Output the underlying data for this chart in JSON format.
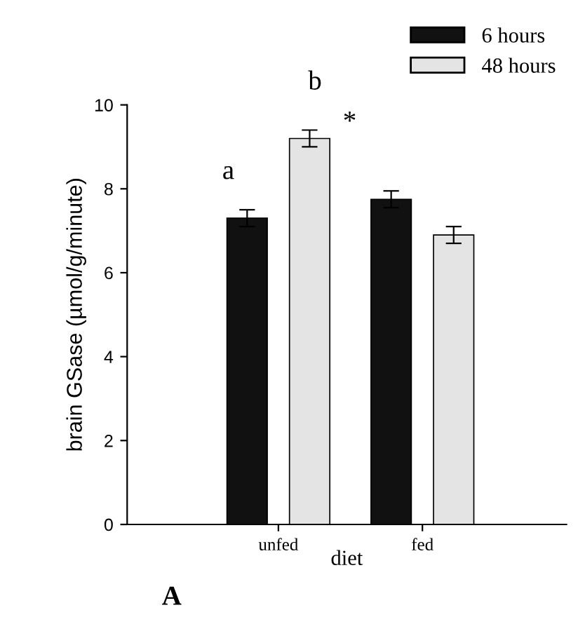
{
  "chart_data": {
    "type": "bar",
    "xlabel": "diet",
    "ylabel": "brain GSase (µmol/g/minute)",
    "categories": [
      "unfed",
      "fed"
    ],
    "series": [
      {
        "name": "6 hours",
        "color": "#111111",
        "values": [
          7.3,
          7.75
        ],
        "errors": [
          0.2,
          0.2
        ]
      },
      {
        "name": "48 hours",
        "color": "#e4e4e4",
        "values": [
          9.2,
          6.9
        ],
        "errors": [
          0.2,
          0.2
        ]
      }
    ],
    "ylim": [
      0,
      10
    ],
    "yticks": [
      0,
      2,
      4,
      6,
      8,
      10
    ],
    "grid": false,
    "legend": "top right",
    "annotations": [
      "a",
      "b",
      "*",
      "A"
    ]
  }
}
